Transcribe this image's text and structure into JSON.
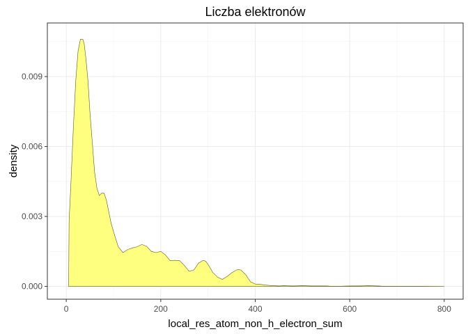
{
  "chart_data": {
    "type": "area",
    "title": "Liczba elektronów",
    "xlabel": "local_res_atom_non_h_electron_sum",
    "ylabel": "density",
    "xlim": [
      -40,
      840
    ],
    "ylim": [
      -0.00055,
      0.0113
    ],
    "x_ticks": [
      0,
      200,
      400,
      600,
      800
    ],
    "x_tick_labels": [
      "0",
      "200",
      "400",
      "600",
      "800"
    ],
    "y_ticks": [
      0,
      0.003,
      0.006,
      0.009
    ],
    "y_tick_labels": [
      "0.000",
      "0.003",
      "0.006",
      "0.009"
    ],
    "grid": true,
    "legend": "none",
    "fill_color": "#ffff7f",
    "line_color": "#5a5a1e",
    "series": [
      {
        "x": [
          5,
          6,
          10,
          15,
          20,
          25,
          30,
          35,
          38,
          42,
          46,
          50,
          55,
          60,
          65,
          70,
          75,
          80,
          85,
          90,
          95,
          100,
          110,
          120,
          130,
          140,
          150,
          160,
          170,
          180,
          190,
          200,
          210,
          220,
          230,
          240,
          250,
          260,
          270,
          280,
          290,
          295,
          300,
          310,
          320,
          330,
          340,
          350,
          360,
          365,
          370,
          380,
          390,
          400,
          410,
          420,
          430,
          440,
          450,
          460,
          480,
          500,
          520,
          540,
          550,
          560,
          580,
          600,
          620,
          640,
          660,
          670,
          700,
          750,
          800
        ],
        "y": [
          0,
          0.0028,
          0.0045,
          0.0068,
          0.0088,
          0.0101,
          0.0106,
          0.0106,
          0.0104,
          0.0097,
          0.0088,
          0.0075,
          0.0062,
          0.0049,
          0.0042,
          0.0039,
          0.004,
          0.004,
          0.0037,
          0.0032,
          0.0027,
          0.00235,
          0.0017,
          0.00145,
          0.00158,
          0.00165,
          0.0017,
          0.0018,
          0.00172,
          0.0015,
          0.00145,
          0.0015,
          0.00135,
          0.0011,
          0.00112,
          0.0011,
          0.0009,
          0.00065,
          0.0007,
          0.001,
          0.00112,
          0.00108,
          0.00095,
          0.0006,
          0.0004,
          0.0003,
          0.00042,
          0.00058,
          0.0007,
          0.00072,
          0.0007,
          0.0005,
          0.0002,
          0.0001,
          9e-05,
          6e-05,
          4e-05,
          3e-05,
          2e-05,
          3e-05,
          2e-05,
          3e-05,
          2e-05,
          2e-05,
          2e-05,
          1e-05,
          1e-05,
          2e-05,
          2e-05,
          3e-05,
          2e-05,
          1e-05,
          1e-05,
          1e-05,
          0
        ]
      }
    ]
  }
}
